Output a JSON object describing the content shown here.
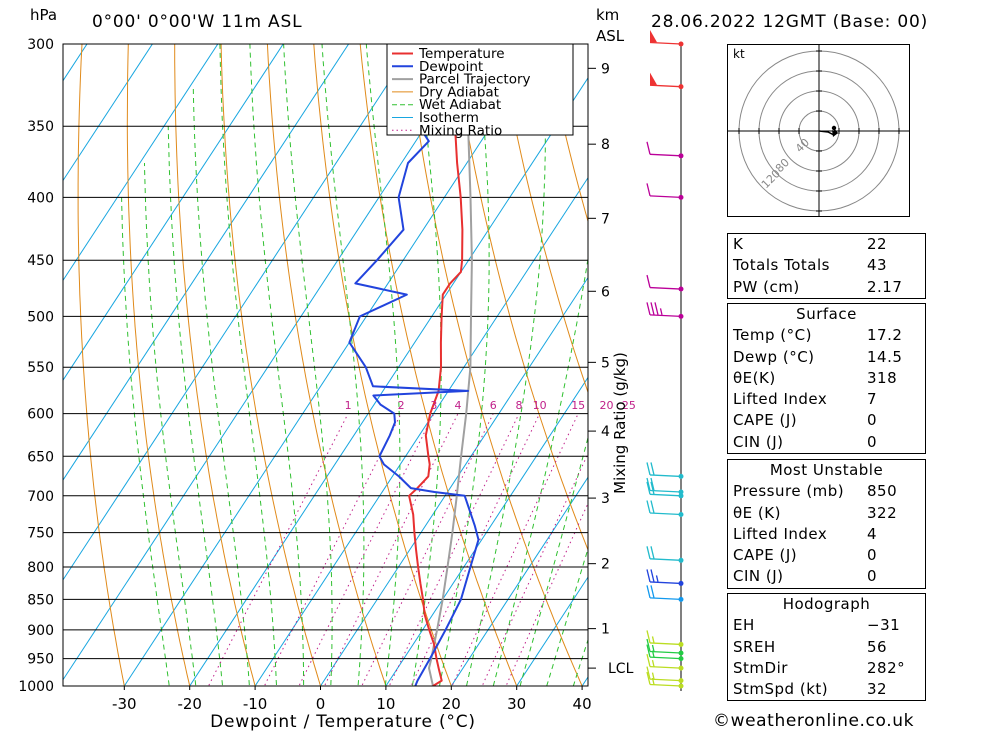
{
  "header": {
    "pressure_unit": "hPa",
    "location": "0°00' 0°00'W 11m ASL",
    "height_unit": "km",
    "height_unit2": "ASL",
    "datetime": "28.06.2022 12GMT (Base: 00)"
  },
  "chart_data": {
    "type": "line",
    "subtype": "skew-T log-P",
    "xlabel": "Dewpoint / Temperature (°C)",
    "x_ticks": [
      -30,
      -20,
      -10,
      0,
      10,
      20,
      30,
      40
    ],
    "xlim": [
      -40,
      40
    ],
    "ylabel": "hPa",
    "y_ticks": [
      300,
      350,
      400,
      450,
      500,
      550,
      600,
      650,
      700,
      750,
      800,
      850,
      900,
      950,
      1000
    ],
    "ylim": [
      1000,
      300
    ],
    "y_scale": "log",
    "height_axis_label": "km ASL",
    "height_ticks": [
      {
        "label": "1",
        "p": 898
      },
      {
        "label": "2",
        "p": 795
      },
      {
        "label": "3",
        "p": 703
      },
      {
        "label": "4",
        "p": 620
      },
      {
        "label": "5",
        "p": 545
      },
      {
        "label": "6",
        "p": 477
      },
      {
        "label": "7",
        "p": 416
      },
      {
        "label": "8",
        "p": 362
      },
      {
        "label": "9",
        "p": 314
      },
      {
        "label": "LCL",
        "p": 967
      }
    ],
    "mixing_ratio_label": "Mixing Ratio (g/kg)",
    "mixing_ratio_values": [
      "1",
      "2",
      "3",
      "4",
      "6",
      "8",
      "10",
      "15",
      "20",
      "25"
    ],
    "grid": true,
    "legend_position": "top-right",
    "legend": [
      "Temperature",
      "Dewpoint",
      "Parcel Trajectory",
      "Dry Adiabat",
      "Wet Adiabat",
      "Isotherm",
      "Mixing Ratio"
    ],
    "series": [
      {
        "name": "Temperature",
        "color": "#e83030",
        "points": [
          [
            1000,
            17.2
          ],
          [
            990,
            18
          ],
          [
            970,
            16.5
          ],
          [
            950,
            15
          ],
          [
            925,
            13.2
          ],
          [
            900,
            11
          ],
          [
            875,
            8.8
          ],
          [
            850,
            7
          ],
          [
            825,
            5
          ],
          [
            800,
            3
          ],
          [
            775,
            1
          ],
          [
            750,
            -1
          ],
          [
            725,
            -3
          ],
          [
            700,
            -5.5
          ],
          [
            690,
            -5
          ],
          [
            675,
            -4.5
          ],
          [
            660,
            -5.5
          ],
          [
            650,
            -6.5
          ],
          [
            625,
            -9
          ],
          [
            600,
            -10.5
          ],
          [
            575,
            -11.5
          ],
          [
            550,
            -13.5
          ],
          [
            525,
            -16
          ],
          [
            500,
            -18.5
          ],
          [
            480,
            -20.5
          ],
          [
            470,
            -20.5
          ],
          [
            460,
            -20
          ],
          [
            450,
            -21
          ],
          [
            425,
            -24
          ],
          [
            400,
            -27.5
          ],
          [
            375,
            -31.5
          ],
          [
            350,
            -35.5
          ],
          [
            325,
            -40
          ],
          [
            300,
            -45
          ]
        ]
      },
      {
        "name": "Dewpoint",
        "color": "#2244dd",
        "points": [
          [
            1000,
            14.5
          ],
          [
            990,
            14.3
          ],
          [
            950,
            14
          ],
          [
            900,
            13.5
          ],
          [
            850,
            12.8
          ],
          [
            800,
            11
          ],
          [
            760,
            9.5
          ],
          [
            740,
            7.5
          ],
          [
            700,
            3
          ],
          [
            695,
            -2
          ],
          [
            690,
            -6
          ],
          [
            675,
            -9
          ],
          [
            660,
            -12.5
          ],
          [
            650,
            -14
          ],
          [
            625,
            -14.5
          ],
          [
            610,
            -15
          ],
          [
            600,
            -16
          ],
          [
            590,
            -19
          ],
          [
            580,
            -21
          ],
          [
            575,
            -7
          ],
          [
            570,
            -22
          ],
          [
            550,
            -25
          ],
          [
            525,
            -30
          ],
          [
            500,
            -31
          ],
          [
            480,
            -26
          ],
          [
            470,
            -35
          ],
          [
            450,
            -34
          ],
          [
            425,
            -33
          ],
          [
            400,
            -37
          ],
          [
            375,
            -39
          ],
          [
            360,
            -38
          ],
          [
            350,
            -41
          ],
          [
            325,
            -45
          ],
          [
            310,
            -45
          ],
          [
            300,
            -38
          ]
        ]
      },
      {
        "name": "Parcel Trajectory",
        "color": "#a0a0a0",
        "points": [
          [
            1000,
            17.2
          ],
          [
            967,
            14.8
          ],
          [
            950,
            14.2
          ],
          [
            925,
            13.2
          ],
          [
            900,
            12.2
          ],
          [
            850,
            10
          ],
          [
            800,
            7.5
          ],
          [
            750,
            4.8
          ],
          [
            700,
            1.8
          ],
          [
            650,
            -1.5
          ],
          [
            600,
            -5
          ],
          [
            550,
            -9
          ],
          [
            500,
            -14
          ],
          [
            450,
            -19.5
          ],
          [
            400,
            -26
          ],
          [
            350,
            -33.5
          ],
          [
            300,
            -42
          ]
        ]
      }
    ],
    "wind_barbs": [
      {
        "p": 1000,
        "speed_kt": 15,
        "color": "#bbdd22"
      },
      {
        "p": 990,
        "speed_kt": 15,
        "color": "#bbdd22"
      },
      {
        "p": 967,
        "speed_kt": 15,
        "color": "#bbdd22"
      },
      {
        "p": 950,
        "speed_kt": 15,
        "color": "#22cc44"
      },
      {
        "p": 940,
        "speed_kt": 15,
        "color": "#22cc44"
      },
      {
        "p": 925,
        "speed_kt": 15,
        "color": "#bbdd22"
      },
      {
        "p": 850,
        "speed_kt": 20,
        "color": "#1199ee"
      },
      {
        "p": 825,
        "speed_kt": 25,
        "color": "#2244dd"
      },
      {
        "p": 790,
        "speed_kt": 20,
        "color": "#22bbcc"
      },
      {
        "p": 725,
        "speed_kt": 20,
        "color": "#22bbcc"
      },
      {
        "p": 700,
        "speed_kt": 20,
        "color": "#22bbcc"
      },
      {
        "p": 695,
        "speed_kt": 20,
        "color": "#22bbcc"
      },
      {
        "p": 675,
        "speed_kt": 20,
        "color": "#22bbcc"
      },
      {
        "p": 500,
        "speed_kt": 35,
        "color": "#bb0099"
      },
      {
        "p": 475,
        "speed_kt": 10,
        "color": "#bb0099"
      },
      {
        "p": 400,
        "speed_kt": 10,
        "color": "#bb0099"
      },
      {
        "p": 370,
        "speed_kt": 10,
        "color": "#bb0099"
      },
      {
        "p": 325,
        "speed_kt": 50,
        "color": "#ee3333"
      },
      {
        "p": 300,
        "speed_kt": 50,
        "color": "#ee3333"
      }
    ]
  },
  "hodograph": {
    "unit": "kt",
    "rings": [
      "40",
      "80",
      "120"
    ]
  },
  "indices": {
    "basic": [
      {
        "label": "K",
        "value": "22"
      },
      {
        "label": "Totals Totals",
        "value": "43"
      },
      {
        "label": "PW (cm)",
        "value": "2.17"
      }
    ],
    "surface": {
      "title": "Surface",
      "rows": [
        {
          "label": "Temp (°C)",
          "value": "17.2"
        },
        {
          "label": "Dewp (°C)",
          "value": "14.5"
        },
        {
          "label": "θE(K)",
          "value": "318"
        },
        {
          "label": "Lifted Index",
          "value": "7"
        },
        {
          "label": "CAPE (J)",
          "value": "0"
        },
        {
          "label": "CIN (J)",
          "value": "0"
        }
      ]
    },
    "most_unstable": {
      "title": "Most Unstable",
      "rows": [
        {
          "label": "Pressure (mb)",
          "value": "850"
        },
        {
          "label": "θE (K)",
          "value": "322"
        },
        {
          "label": "Lifted Index",
          "value": "4"
        },
        {
          "label": "CAPE (J)",
          "value": "0"
        },
        {
          "label": "CIN (J)",
          "value": "0"
        }
      ]
    },
    "hodograph": {
      "title": "Hodograph",
      "rows": [
        {
          "label": "EH",
          "value": "−31"
        },
        {
          "label": "SREH",
          "value": "56"
        },
        {
          "label": "StmDir",
          "value": "282°"
        },
        {
          "label": "StmSpd (kt)",
          "value": "32"
        }
      ]
    }
  },
  "footer": {
    "copyright": "©weatheronline.co.uk"
  }
}
